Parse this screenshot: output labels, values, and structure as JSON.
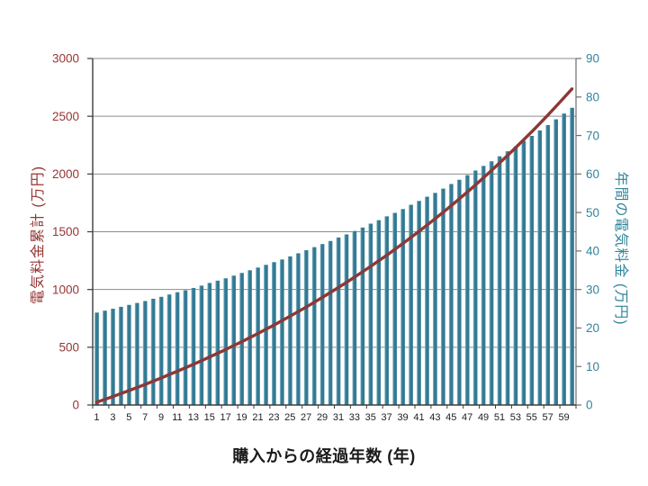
{
  "chart_data": {
    "type": "combo-bar-line",
    "title": "",
    "xlabel": "購入からの経過年数 (年)",
    "x": [
      1,
      2,
      3,
      4,
      5,
      6,
      7,
      8,
      9,
      10,
      11,
      12,
      13,
      14,
      15,
      16,
      17,
      18,
      19,
      20,
      21,
      22,
      23,
      24,
      25,
      26,
      27,
      28,
      29,
      30,
      31,
      32,
      33,
      34,
      35,
      36,
      37,
      38,
      39,
      40,
      41,
      42,
      43,
      44,
      45,
      46,
      47,
      48,
      49,
      50,
      51,
      52,
      53,
      54,
      55,
      56,
      57,
      58,
      59,
      60
    ],
    "x_tick_labels": [
      "1",
      "3",
      "5",
      "7",
      "9",
      "11",
      "13",
      "15",
      "17",
      "19",
      "21",
      "23",
      "25",
      "27",
      "29",
      "31",
      "33",
      "35",
      "37",
      "39",
      "41",
      "43",
      "45",
      "47",
      "49",
      "51",
      "53",
      "55",
      "57",
      "59"
    ],
    "series": [
      {
        "name": "annual-electricity-cost",
        "label": "年間の電気料金",
        "type": "bar",
        "axis": "right",
        "color": "#2e7590",
        "values": [
          24.0,
          24.5,
          25.0,
          25.5,
          26.0,
          26.5,
          27.0,
          27.6,
          28.1,
          28.7,
          29.3,
          29.8,
          30.4,
          31.0,
          31.7,
          32.3,
          32.9,
          33.6,
          34.3,
          35.0,
          35.7,
          36.4,
          37.1,
          37.8,
          38.6,
          39.4,
          40.2,
          41.0,
          41.8,
          42.6,
          43.5,
          44.3,
          45.2,
          46.1,
          47.1,
          48.0,
          49.0,
          49.9,
          50.9,
          52.0,
          53.0,
          54.1,
          55.1,
          56.2,
          57.4,
          58.5,
          59.7,
          60.9,
          62.1,
          63.3,
          64.6,
          65.9,
          67.2,
          68.6,
          69.9,
          71.3,
          72.7,
          74.2,
          75.7,
          77.2
        ]
      },
      {
        "name": "cumulative-electricity-cost",
        "label": "電気料金累計",
        "type": "line",
        "axis": "left",
        "color": "#8c3836",
        "values": [
          24,
          48,
          73,
          99,
          125,
          151,
          178,
          206,
          234,
          263,
          292,
          322,
          352,
          383,
          415,
          447,
          480,
          514,
          548,
          583,
          619,
          655,
          692,
          730,
          769,
          808,
          848,
          889,
          931,
          974,
          1017,
          1061,
          1107,
          1153,
          1200,
          1248,
          1297,
          1347,
          1398,
          1450,
          1503,
          1557,
          1612,
          1668,
          1725,
          1784,
          1844,
          1904,
          1967,
          2030,
          2095,
          2160,
          2228,
          2296,
          2366,
          2437,
          2510,
          2584,
          2660,
          2737
        ]
      }
    ],
    "left_axis": {
      "title": "電気料金累計 (万円)",
      "min": 0,
      "max": 3000,
      "step": 500,
      "color": "#943634"
    },
    "right_axis": {
      "title": "年間の電気料金 (万円)",
      "min": 0,
      "max": 90,
      "step": 10,
      "color": "#31859b"
    },
    "grid": true,
    "gridline_step_left": 500,
    "legend": false
  }
}
